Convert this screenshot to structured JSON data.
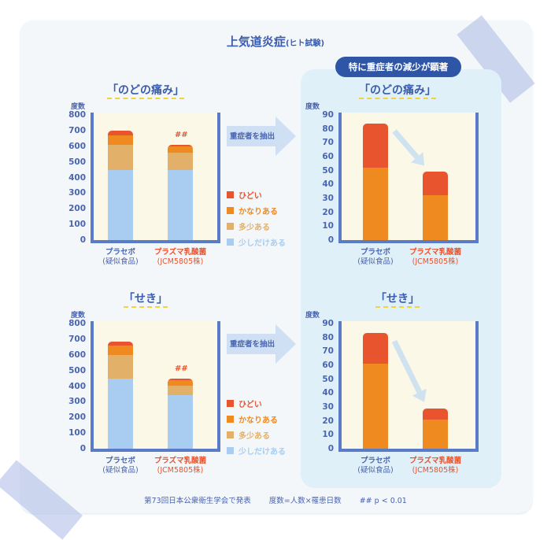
{
  "title": {
    "main": "上気道炎症",
    "sub": "(ヒト試験)"
  },
  "highlight_badge": "特に重症者の減少が顕著",
  "extract_label": "重症者を抽出",
  "y_unit": "度数",
  "x_labels": {
    "placebo": [
      "プラセボ",
      "(疑似食品)"
    ],
    "plasma": [
      "プラズマ乳酸菌",
      "(JCM5805株)"
    ]
  },
  "significance_mark": "##",
  "legend": [
    {
      "label": "ひどい",
      "color": "#e8542e"
    },
    {
      "label": "かなりある",
      "color": "#ee8a1f"
    },
    {
      "label": "多少ある",
      "color": "#e2b068"
    },
    {
      "label": "少しだけある",
      "color": "#a9cdf0"
    }
  ],
  "footer": {
    "source": "第73回日本公衆衛生学会で発表",
    "definition": "度数=人数×罹患日数",
    "pvalue": "## p < 0.01"
  },
  "chart_data": [
    {
      "type": "bar",
      "stacked": true,
      "title": "「のどの痛み」",
      "ylabel": "度数",
      "ylim": [
        0,
        800
      ],
      "yticks": [
        0,
        100,
        200,
        300,
        400,
        500,
        600,
        700,
        800
      ],
      "categories": [
        "プラセボ(疑似食品)",
        "プラズマ乳酸菌(JCM5805株)"
      ],
      "series": [
        {
          "name": "少しだけある",
          "values": [
            450,
            450
          ]
        },
        {
          "name": "多少ある",
          "values": [
            160,
            110
          ]
        },
        {
          "name": "かなりある",
          "values": [
            60,
            40
          ]
        },
        {
          "name": "ひどい",
          "values": [
            30,
            10
          ]
        }
      ],
      "annotations": [
        {
          "category": "プラズマ乳酸菌(JCM5805株)",
          "text": "##"
        }
      ]
    },
    {
      "type": "bar",
      "stacked": true,
      "title": "「のどの痛み」",
      "ylabel": "度数",
      "ylim": [
        0,
        90
      ],
      "yticks": [
        0,
        10,
        20,
        30,
        40,
        50,
        60,
        70,
        80,
        90
      ],
      "categories": [
        "プラセボ(疑似食品)",
        "プラズマ乳酸菌(JCM5805株)"
      ],
      "series": [
        {
          "name": "かなりある",
          "values": [
            52,
            32
          ]
        },
        {
          "name": "ひどい",
          "values": [
            32,
            17
          ]
        }
      ]
    },
    {
      "type": "bar",
      "stacked": true,
      "title": "「せき」",
      "ylabel": "度数",
      "ylim": [
        0,
        800
      ],
      "yticks": [
        0,
        100,
        200,
        300,
        400,
        500,
        600,
        700,
        800
      ],
      "categories": [
        "プラセボ(疑似食品)",
        "プラズマ乳酸菌(JCM5805株)"
      ],
      "series": [
        {
          "name": "少しだけある",
          "values": [
            450,
            340
          ]
        },
        {
          "name": "多少ある",
          "values": [
            150,
            65
          ]
        },
        {
          "name": "かなりある",
          "values": [
            60,
            35
          ]
        },
        {
          "name": "ひどい",
          "values": [
            25,
            10
          ]
        }
      ],
      "annotations": [
        {
          "category": "プラズマ乳酸菌(JCM5805株)",
          "text": "##"
        }
      ]
    },
    {
      "type": "bar",
      "stacked": true,
      "title": "「せき」",
      "ylabel": "度数",
      "ylim": [
        0,
        90
      ],
      "yticks": [
        0,
        10,
        20,
        30,
        40,
        50,
        60,
        70,
        80,
        90
      ],
      "categories": [
        "プラセボ(疑似食品)",
        "プラズマ乳酸菌(JCM5805株)"
      ],
      "series": [
        {
          "name": "かなりある",
          "values": [
            61,
            21
          ]
        },
        {
          "name": "ひどい",
          "values": [
            22,
            8
          ]
        }
      ]
    }
  ]
}
